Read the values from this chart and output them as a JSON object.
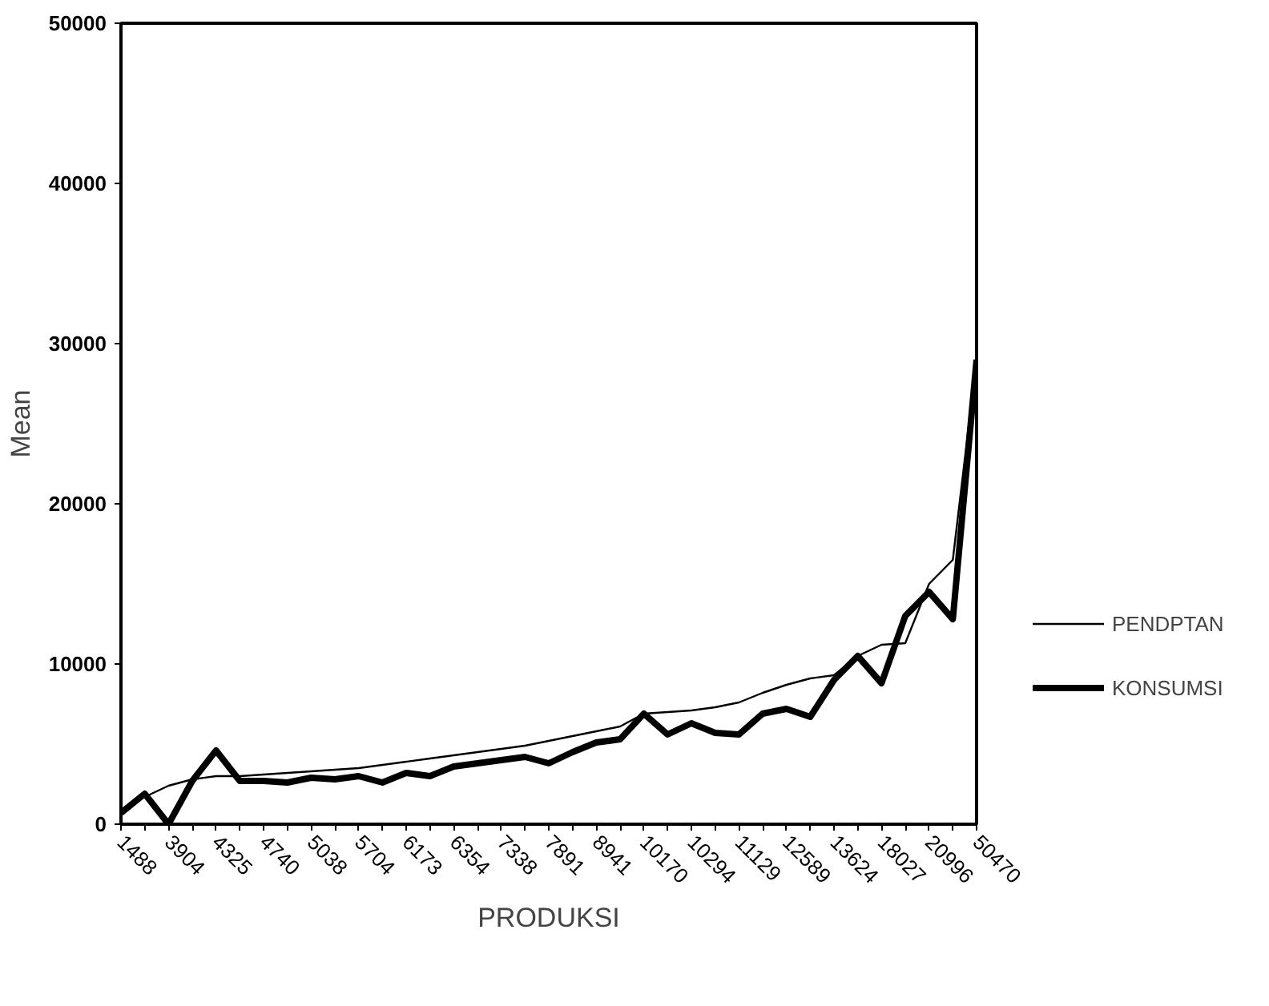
{
  "chart_data": {
    "type": "line",
    "xlabel": "PRODUKSI",
    "ylabel": "Mean",
    "categories": [
      "1488",
      null,
      "3904",
      null,
      "4325",
      null,
      "4740",
      null,
      "5038",
      null,
      "5704",
      null,
      "6173",
      null,
      "6354",
      null,
      "7338",
      null,
      "7891",
      null,
      "8941",
      null,
      "10170",
      null,
      "10294",
      null,
      "11129",
      null,
      "12589",
      null,
      "13624",
      null,
      "18027",
      null,
      "20996",
      null,
      "50470"
    ],
    "series": [
      {
        "name": "PENDPTAN",
        "color": "#000000",
        "values": [
          900,
          1700,
          2400,
          2800,
          3000,
          3000,
          3100,
          3200,
          3300,
          3400,
          3500,
          3700,
          3900,
          4100,
          4300,
          4500,
          4700,
          4900,
          5200,
          5500,
          5800,
          6100,
          6900,
          7000,
          7100,
          7300,
          7600,
          8200,
          8700,
          9100,
          9300,
          10500,
          11200,
          11300,
          15000,
          16500,
          29000
        ]
      },
      {
        "name": "KONSUMSI",
        "color": "#000000",
        "values": [
          700,
          1900,
          0,
          2700,
          4600,
          2700,
          2700,
          2600,
          2900,
          2800,
          3000,
          2600,
          3200,
          3000,
          3600,
          3800,
          4000,
          4200,
          3800,
          4500,
          5100,
          5300,
          6900,
          5600,
          6300,
          5700,
          5600,
          6900,
          7200,
          6700,
          9000,
          10500,
          8800,
          13000,
          14500,
          12800,
          29000
        ]
      }
    ],
    "ylim": [
      0,
      50000
    ],
    "yticks": [
      0,
      10000,
      20000,
      30000,
      40000,
      50000
    ],
    "grid": false,
    "legend": "right"
  }
}
